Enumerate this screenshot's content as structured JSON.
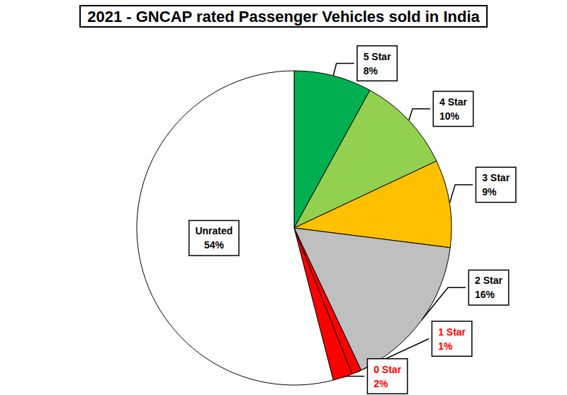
{
  "chart_data": {
    "type": "pie",
    "title": "2021 - GNCAP rated Passenger Vehicles sold in India",
    "categories": [
      "5 Star",
      "4 Star",
      "3 Star",
      "2 Star",
      "1 Star",
      "0 Star",
      "Unrated"
    ],
    "values": [
      8,
      10,
      9,
      16,
      1,
      2,
      54
    ],
    "value_labels": [
      "8%",
      "10%",
      "9%",
      "16%",
      "1%",
      "2%",
      "54%"
    ],
    "colors": [
      "#00b050",
      "#92d050",
      "#ffc000",
      "#bfbfbf",
      "#ff0000",
      "#ff0000",
      "#ffffff"
    ],
    "data_labels": true,
    "legend": false
  }
}
